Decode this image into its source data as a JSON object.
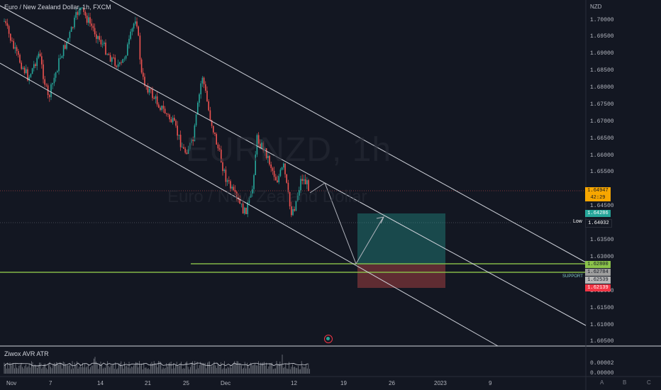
{
  "header": {
    "legend": "Euro / New Zealand Dollar, 1h, FXCM"
  },
  "watermark": {
    "symbol": "EURNZD, 1h",
    "name": "Euro / New Zealand Dollar"
  },
  "price_axis": {
    "unit": "NZD",
    "ticks": [
      "1.70000",
      "1.69500",
      "1.69000",
      "1.68500",
      "1.68000",
      "1.67500",
      "1.67000",
      "1.66500",
      "1.66000",
      "1.65500",
      "1.64500",
      "1.63500",
      "1.63000",
      "1.62000",
      "1.61500",
      "1.61000",
      "1.60500"
    ]
  },
  "price_badges": {
    "current": "1.64947",
    "countdown": "42:29",
    "p2": "1.64286",
    "low_label": "Low",
    "low_value": "1.64032",
    "target": "1.62800",
    "support_price": "1.62784",
    "entry": "1.62539",
    "stop": "1.62139"
  },
  "support_label": "SUPPORT",
  "indicator": {
    "name": "Ziwox AVR ATR",
    "ticks": [
      "0.00002",
      "0.00000"
    ]
  },
  "time_axis": {
    "labels": [
      "Nov",
      "7",
      "14",
      "21",
      "25",
      "Dec",
      "12",
      "19",
      "26",
      "2023",
      "9"
    ]
  },
  "right_buttons": [
    "A",
    "B",
    "C"
  ],
  "colors": {
    "background": "#131722",
    "candle_up": "#26a69a",
    "candle_down": "#ef5350",
    "support": "#8bc34a",
    "profit_zone": "#26a69a",
    "loss_zone": "#ef5350",
    "channel": "#d1d4dc"
  }
}
